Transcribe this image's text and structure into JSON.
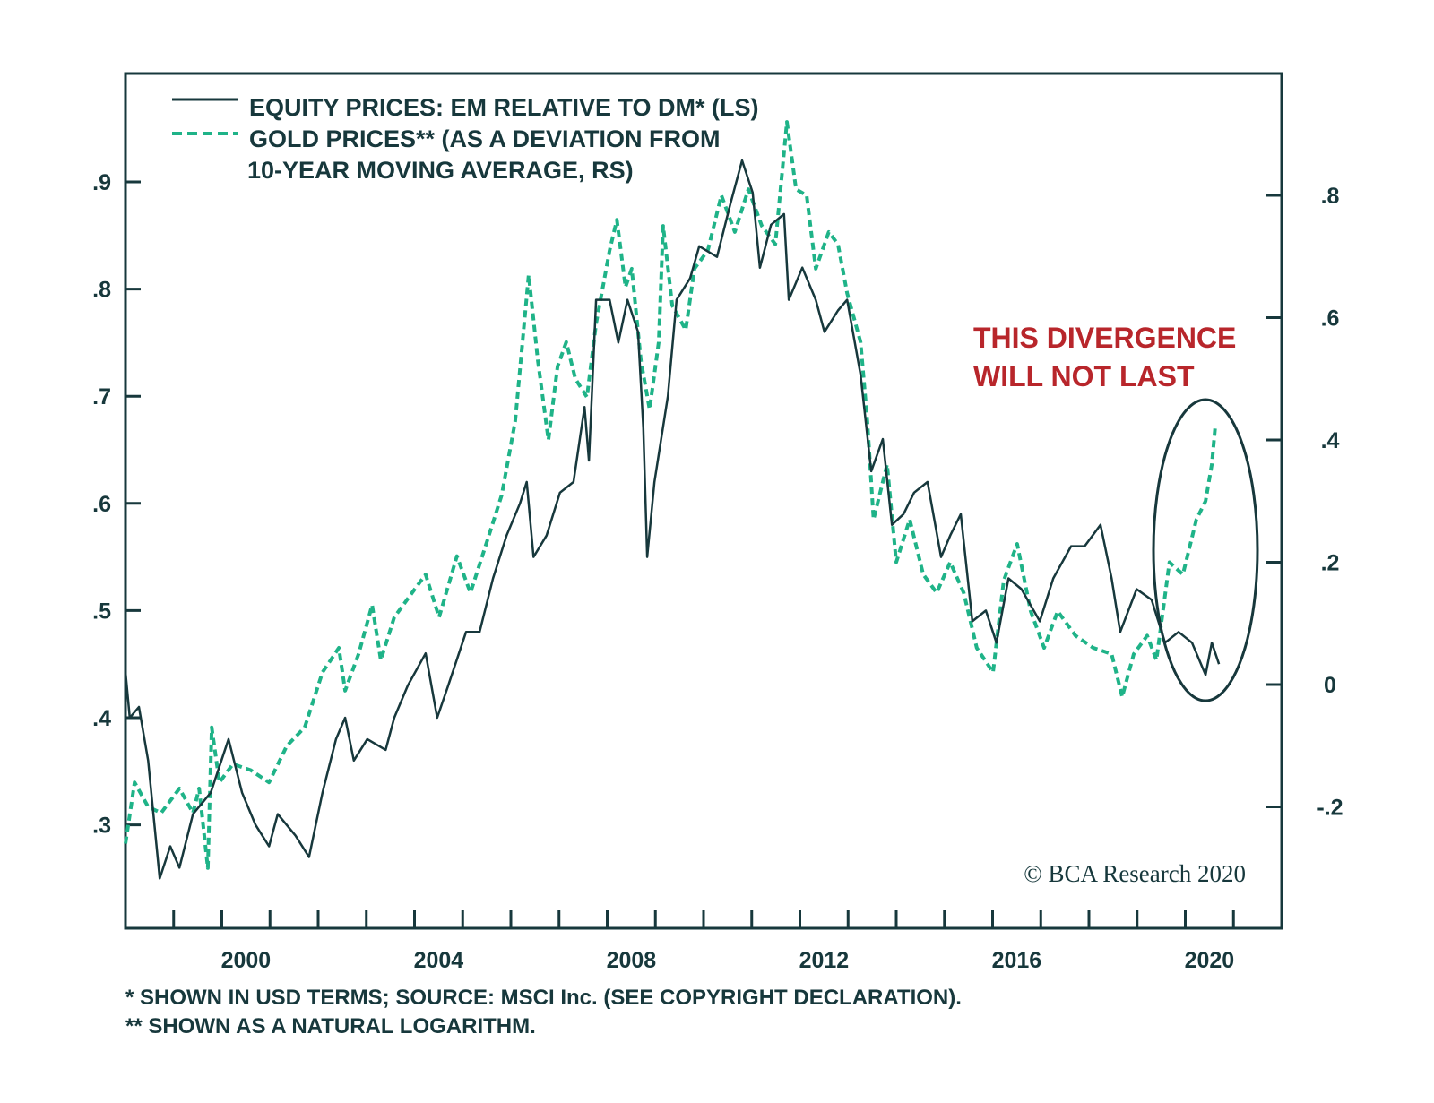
{
  "chart_data": {
    "type": "line",
    "title": "",
    "legend": {
      "placement": "top-left",
      "entries": [
        "EQUITY PRICES: EM RELATIVE TO DM* (LS)",
        "GOLD PRICES** (AS A DEVIATION FROM",
        "10-YEAR MOVING AVERAGE, RS)"
      ]
    },
    "x_axis": {
      "range": [
        1998,
        2022
      ],
      "tick_labels": [
        "2000",
        "2004",
        "2008",
        "2012",
        "2016",
        "2020"
      ],
      "minor_ticks": "yearly"
    },
    "y_left": {
      "range": [
        0.2,
        1.0
      ],
      "ticks": [
        0.3,
        0.4,
        0.5,
        0.6,
        0.7,
        0.8,
        0.9
      ],
      "tick_labels": [
        ".3",
        ".4",
        ".5",
        ".6",
        ".7",
        ".8",
        ".9"
      ]
    },
    "y_right": {
      "range": [
        -0.35,
        1.0
      ],
      "ticks": [
        -0.2,
        0,
        0.2,
        0.4,
        0.6,
        0.8
      ],
      "tick_labels": [
        "-.2",
        "0",
        ".2",
        ".4",
        ".6",
        ".8"
      ]
    },
    "grid": false,
    "series": [
      {
        "name": "EQUITY PRICES: EM RELATIVE TO DM* (LS)",
        "axis": "left",
        "color": "#17383c",
        "style": "solid",
        "x": [
          1998.0,
          1998.09,
          1998.28,
          1998.47,
          1998.71,
          1998.93,
          1999.12,
          1999.4,
          1999.77,
          2000.14,
          2000.42,
          2000.7,
          2000.98,
          2001.16,
          2001.53,
          2001.81,
          2002.09,
          2002.37,
          2002.56,
          2002.74,
          2003.02,
          2003.4,
          2003.58,
          2003.86,
          2004.23,
          2004.47,
          2004.7,
          2005.07,
          2005.35,
          2005.63,
          2005.91,
          2006.19,
          2006.33,
          2006.47,
          2006.74,
          2007.02,
          2007.3,
          2007.53,
          2007.62,
          2007.77,
          2008.05,
          2008.23,
          2008.42,
          2008.64,
          2008.75,
          2008.83,
          2008.98,
          2009.26,
          2009.44,
          2009.72,
          2009.91,
          2010.28,
          2010.56,
          2010.8,
          2011.02,
          2011.17,
          2011.4,
          2011.67,
          2011.77,
          2012.05,
          2012.33,
          2012.51,
          2012.79,
          2012.98,
          2013.26,
          2013.48,
          2013.72,
          2013.91,
          2014.15,
          2014.37,
          2014.65,
          2014.93,
          2015.12,
          2015.34,
          2015.58,
          2015.86,
          2016.08,
          2016.33,
          2016.6,
          2016.98,
          2017.26,
          2017.63,
          2017.91,
          2018.24,
          2018.47,
          2018.65,
          2018.99,
          2019.3,
          2019.58,
          2019.86,
          2020.14,
          2020.42,
          2020.55,
          2020.7
        ],
        "y": [
          0.443,
          0.4,
          0.41,
          0.36,
          0.25,
          0.28,
          0.26,
          0.31,
          0.33,
          0.38,
          0.33,
          0.3,
          0.28,
          0.31,
          0.29,
          0.27,
          0.33,
          0.38,
          0.4,
          0.36,
          0.38,
          0.37,
          0.4,
          0.43,
          0.46,
          0.4,
          0.43,
          0.48,
          0.48,
          0.53,
          0.57,
          0.6,
          0.62,
          0.55,
          0.57,
          0.61,
          0.62,
          0.69,
          0.64,
          0.79,
          0.79,
          0.75,
          0.79,
          0.76,
          0.67,
          0.55,
          0.62,
          0.7,
          0.79,
          0.81,
          0.84,
          0.83,
          0.88,
          0.92,
          0.89,
          0.82,
          0.86,
          0.87,
          0.79,
          0.82,
          0.79,
          0.76,
          0.78,
          0.79,
          0.72,
          0.63,
          0.66,
          0.58,
          0.59,
          0.61,
          0.62,
          0.55,
          0.57,
          0.59,
          0.49,
          0.5,
          0.47,
          0.53,
          0.52,
          0.49,
          0.53,
          0.56,
          0.56,
          0.58,
          0.53,
          0.48,
          0.52,
          0.51,
          0.47,
          0.48,
          0.47,
          0.44,
          0.47,
          0.45
        ]
      },
      {
        "name": "GOLD PRICES** (AS A DEVIATION FROM 10-YEAR MOVING AVERAGE, RS)",
        "axis": "right",
        "color": "#1fb388",
        "style": "dashed",
        "x": [
          1998.0,
          1998.19,
          1998.47,
          1998.74,
          1999.12,
          1999.4,
          1999.53,
          1999.71,
          1999.79,
          1999.95,
          2000.23,
          2000.6,
          2000.98,
          2001.35,
          2001.72,
          2002.09,
          2002.43,
          2002.56,
          2002.84,
          2003.12,
          2003.3,
          2003.58,
          2003.95,
          2004.23,
          2004.51,
          2004.88,
          2005.16,
          2005.53,
          2005.81,
          2006.09,
          2006.37,
          2006.56,
          2006.78,
          2006.97,
          2007.15,
          2007.34,
          2007.58,
          2007.77,
          2008.05,
          2008.2,
          2008.38,
          2008.51,
          2008.7,
          2008.88,
          2009.07,
          2009.16,
          2009.35,
          2009.63,
          2009.81,
          2010.09,
          2010.37,
          2010.65,
          2010.93,
          2011.21,
          2011.49,
          2011.73,
          2011.92,
          2012.14,
          2012.33,
          2012.6,
          2012.79,
          2012.98,
          2013.26,
          2013.4,
          2013.53,
          2013.81,
          2014.0,
          2014.28,
          2014.56,
          2014.84,
          2015.12,
          2015.4,
          2015.67,
          2016.01,
          2016.23,
          2016.51,
          2016.79,
          2017.07,
          2017.35,
          2017.72,
          2018.09,
          2018.47,
          2018.69,
          2018.93,
          2019.21,
          2019.4,
          2019.67,
          2019.95,
          2020.23,
          2020.42,
          2020.55,
          2020.62
        ],
        "y": [
          -0.26,
          -0.16,
          -0.2,
          -0.21,
          -0.17,
          -0.21,
          -0.17,
          -0.3,
          -0.07,
          -0.16,
          -0.13,
          -0.14,
          -0.16,
          -0.1,
          -0.07,
          0.02,
          0.06,
          -0.01,
          0.05,
          0.13,
          0.04,
          0.11,
          0.15,
          0.18,
          0.11,
          0.21,
          0.15,
          0.24,
          0.31,
          0.43,
          0.67,
          0.53,
          0.4,
          0.52,
          0.56,
          0.5,
          0.47,
          0.59,
          0.71,
          0.76,
          0.65,
          0.68,
          0.53,
          0.45,
          0.56,
          0.75,
          0.62,
          0.58,
          0.68,
          0.71,
          0.8,
          0.74,
          0.81,
          0.75,
          0.72,
          0.92,
          0.81,
          0.8,
          0.68,
          0.74,
          0.72,
          0.64,
          0.56,
          0.43,
          0.27,
          0.36,
          0.2,
          0.27,
          0.18,
          0.15,
          0.2,
          0.15,
          0.06,
          0.02,
          0.17,
          0.23,
          0.12,
          0.06,
          0.12,
          0.08,
          0.06,
          0.05,
          -0.02,
          0.05,
          0.08,
          0.04,
          0.2,
          0.18,
          0.27,
          0.3,
          0.36,
          0.42
        ]
      }
    ],
    "annotations": [
      "THIS DIVERGENCE",
      "WILL NOT LAST"
    ],
    "copyright": "© BCA Research 2020",
    "footnotes": [
      "*  SHOWN IN USD TERMS; SOURCE: MSCI Inc. (SEE COPYRIGHT DECLARATION).",
      "** SHOWN AS A NATURAL LOGARITHM."
    ]
  }
}
